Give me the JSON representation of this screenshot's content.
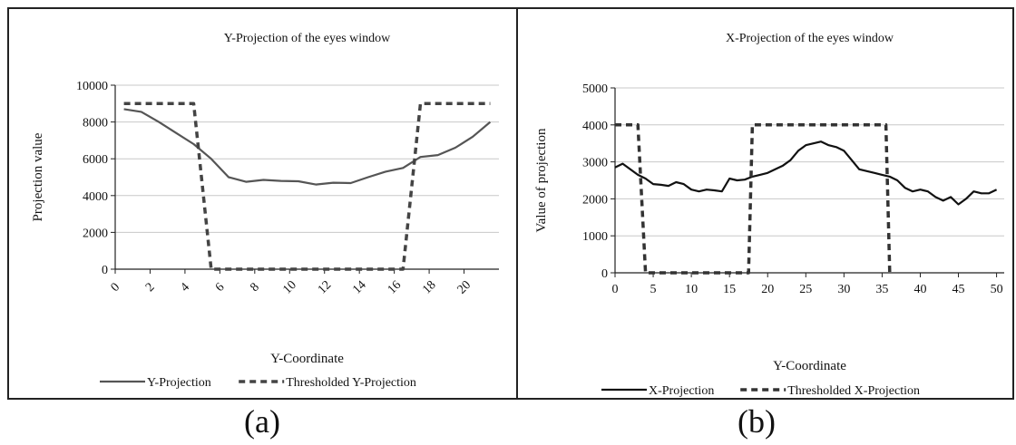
{
  "panels": [
    {
      "caption": "(a)",
      "chart_data": {
        "type": "line",
        "title": "Y-Projection of the eyes window",
        "xlabel": "Y-Coordinate",
        "ylabel": "Projection value",
        "xlim": [
          0,
          22
        ],
        "ylim": [
          0,
          10000
        ],
        "yticks": [
          "0",
          "2000",
          "4000",
          "6000",
          "8000",
          "10000"
        ],
        "xticks": [
          "0",
          "2",
          "4",
          "6",
          "8",
          "10",
          "12",
          "14",
          "16",
          "18",
          "20"
        ],
        "grid": true,
        "legend": "bottom",
        "series": [
          {
            "name": "Y-Projection",
            "style": "solid",
            "color": "#555555",
            "x": [
              0.5,
              1.5,
              2.5,
              3.5,
              4.5,
              5.5,
              6.5,
              7.5,
              8.5,
              9.5,
              10.5,
              11.5,
              12.5,
              13.5,
              14.5,
              15.5,
              16.5,
              17.5,
              18.5,
              19.5,
              20.5,
              21.5
            ],
            "y": [
              8700,
              8550,
              8000,
              7400,
              6800,
              6000,
              5000,
              4750,
              4850,
              4800,
              4780,
              4600,
              4700,
              4680,
              5000,
              5300,
              5500,
              6100,
              6200,
              6600,
              7200,
              8000
            ]
          },
          {
            "name": "Thresholded Y-Projection",
            "style": "dashed",
            "color": "#444444",
            "x": [
              0.5,
              1.5,
              2.5,
              3.5,
              4.5,
              5.5,
              6.5,
              7.5,
              8.5,
              9.5,
              10.5,
              11.5,
              12.5,
              13.5,
              14.5,
              15.5,
              16.5,
              17.5,
              18.5,
              19.5,
              20.5,
              21.5
            ],
            "y": [
              9000,
              9000,
              9000,
              9000,
              9000,
              0,
              0,
              0,
              0,
              0,
              0,
              0,
              0,
              0,
              0,
              0,
              0,
              9000,
              9000,
              9000,
              9000,
              9000
            ]
          }
        ]
      }
    },
    {
      "caption": "(b)",
      "chart_data": {
        "type": "line",
        "title": "X-Projection of the eyes window",
        "xlabel": "Y-Coordinate",
        "ylabel": "Value of projection",
        "xlim": [
          0,
          51
        ],
        "ylim": [
          0,
          5000
        ],
        "yticks": [
          "0",
          "1000",
          "2000",
          "3000",
          "4000",
          "5000"
        ],
        "xticks": [
          "0",
          "5",
          "10",
          "15",
          "20",
          "25",
          "30",
          "35",
          "40",
          "45",
          "50"
        ],
        "grid": true,
        "legend": "bottom",
        "series": [
          {
            "name": "X-Projection",
            "style": "solid",
            "color": "#111111",
            "x": [
              0,
              1,
              2,
              3,
              4,
              5,
              6,
              7,
              8,
              9,
              10,
              11,
              12,
              13,
              14,
              15,
              16,
              17,
              18,
              19,
              20,
              21,
              22,
              23,
              24,
              25,
              26,
              27,
              28,
              29,
              30,
              31,
              32,
              33,
              34,
              35,
              36,
              37,
              38,
              39,
              40,
              41,
              42,
              43,
              44,
              45,
              46,
              47,
              48,
              49,
              50
            ],
            "y": [
              2850,
              2950,
              2800,
              2650,
              2550,
              2400,
              2380,
              2350,
              2450,
              2400,
              2250,
              2200,
              2250,
              2230,
              2200,
              2550,
              2500,
              2520,
              2600,
              2650,
              2700,
              2800,
              2900,
              3050,
              3300,
              3450,
              3500,
              3550,
              3450,
              3400,
              3300,
              3050,
              2800,
              2750,
              2700,
              2650,
              2600,
              2500,
              2300,
              2200,
              2250,
              2200,
              2050,
              1950,
              2050,
              1850,
              2000,
              2200,
              2150,
              2150,
              2250
            ]
          },
          {
            "name": "Thresholded X-Projection",
            "style": "dashed",
            "color": "#333333",
            "x": [
              0,
              3,
              4,
              17.5,
              18,
              35.5,
              36
            ],
            "y": [
              4000,
              4000,
              0,
              0,
              4000,
              4000,
              0
            ]
          }
        ]
      }
    }
  ]
}
